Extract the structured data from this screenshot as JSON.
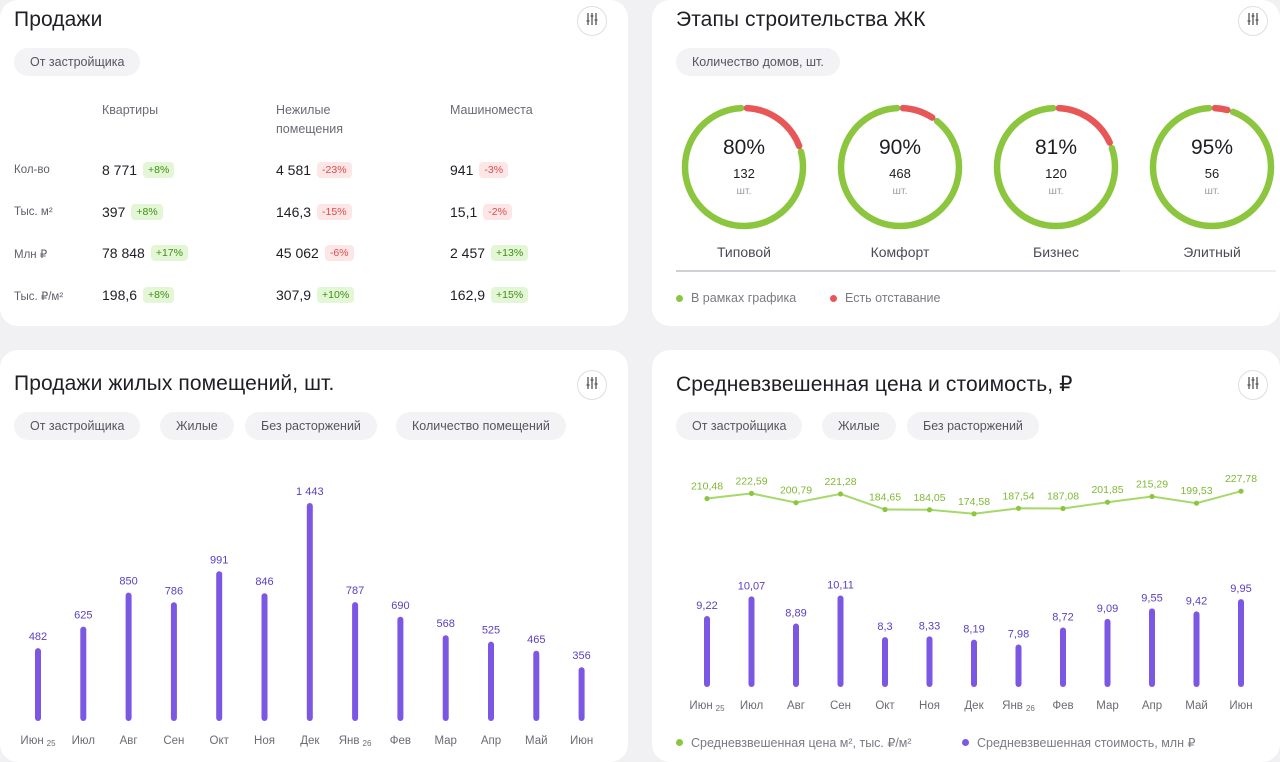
{
  "colors": {
    "accent_purple": "#7b57e4",
    "accent_green": "#8cc63f",
    "green_line": "#a6d86a",
    "red": "#e85757",
    "pos_bg": "#e3f6d6",
    "neg_bg": "#fde6e6"
  },
  "icons": {
    "settings": "sliders-icon"
  },
  "sales": {
    "title": "Продажи",
    "chip": "От застройщика",
    "columns": [
      {
        "lines": [
          "Квартиры"
        ]
      },
      {
        "lines": [
          "Нежилые",
          "помещения"
        ]
      },
      {
        "lines": [
          "Машиноместа"
        ]
      }
    ],
    "rows": [
      {
        "label": "Кол-во",
        "cells": [
          {
            "value": "8 771",
            "change": "+8%",
            "dir": "pos"
          },
          {
            "value": "4 581",
            "change": "-23%",
            "dir": "neg"
          },
          {
            "value": "941",
            "change": "-3%",
            "dir": "neg"
          }
        ]
      },
      {
        "label": "Тыс. м²",
        "cells": [
          {
            "value": "397",
            "change": "+8%",
            "dir": "pos"
          },
          {
            "value": "146,3",
            "change": "-15%",
            "dir": "neg"
          },
          {
            "value": "15,1",
            "change": "-2%",
            "dir": "neg"
          }
        ]
      },
      {
        "label": "Млн ₽",
        "cells": [
          {
            "value": "78 848",
            "change": "+17%",
            "dir": "pos"
          },
          {
            "value": "45 062",
            "change": "-6%",
            "dir": "neg"
          },
          {
            "value": "2 457",
            "change": "+13%",
            "dir": "pos"
          }
        ]
      },
      {
        "label": "Тыс. ₽/м²",
        "cells": [
          {
            "value": "198,6",
            "change": "+8%",
            "dir": "pos"
          },
          {
            "value": "307,9",
            "change": "+10%",
            "dir": "pos"
          },
          {
            "value": "162,9",
            "change": "+15%",
            "dir": "pos"
          }
        ]
      }
    ]
  },
  "stages": {
    "title": "Этапы строительства ЖК",
    "chip": "Количество домов, шт.",
    "donuts": [
      {
        "percent": "80%",
        "fraction": 0.8,
        "count": "132",
        "unit": "шт.",
        "label": "Типовой"
      },
      {
        "percent": "90%",
        "fraction": 0.9,
        "count": "468",
        "unit": "шт.",
        "label": "Комфорт"
      },
      {
        "percent": "81%",
        "fraction": 0.81,
        "count": "120",
        "unit": "шт.",
        "label": "Бизнес"
      },
      {
        "percent": "95%",
        "fraction": 0.95,
        "count": "56",
        "unit": "шт.",
        "label": "Элитный"
      }
    ],
    "scroll_fraction": 0.74,
    "legend": [
      {
        "label": "В рамках графика",
        "color": "#8cc63f"
      },
      {
        "label": "Есть отставание",
        "color": "#e85757"
      }
    ]
  },
  "resid": {
    "title": "Продажи жилых помещений, шт.",
    "chips": [
      "От застройщика",
      "Жилые",
      "Без расторжений",
      "Количество помещений"
    ],
    "chart_data": {
      "type": "bar",
      "categories": [
        "Июн 25",
        "Июл",
        "Авг",
        "Сен",
        "Окт",
        "Ноя",
        "Дек",
        "Янв 26",
        "Фев",
        "Мар",
        "Апр",
        "Май",
        "Июн"
      ],
      "series": [
        {
          "values": [
            482,
            625,
            850,
            786,
            991,
            846,
            1443,
            787,
            690,
            568,
            525,
            465,
            356
          ],
          "labels": [
            "482",
            "625",
            "850",
            "786",
            "991",
            "846",
            "1 443",
            "787",
            "690",
            "568",
            "525",
            "465",
            "356"
          ]
        }
      ],
      "xlabels": [
        {
          "main": "Июн",
          "sub": "25"
        },
        {
          "main": "Июл",
          "sub": ""
        },
        {
          "main": "Авг",
          "sub": ""
        },
        {
          "main": "Сен",
          "sub": ""
        },
        {
          "main": "Окт",
          "sub": ""
        },
        {
          "main": "Ноя",
          "sub": ""
        },
        {
          "main": "Дек",
          "sub": ""
        },
        {
          "main": "Янв",
          "sub": "26"
        },
        {
          "main": "Фев",
          "sub": ""
        },
        {
          "main": "Мар",
          "sub": ""
        },
        {
          "main": "Апр",
          "sub": ""
        },
        {
          "main": "Май",
          "sub": ""
        },
        {
          "main": "Июн",
          "sub": ""
        }
      ],
      "title": "",
      "xlabel": "",
      "ylabel": "",
      "ylim": [
        0,
        1443
      ],
      "grid": false,
      "legend": "none"
    }
  },
  "price": {
    "title": "Средневзвешенная цена и стоимость, ₽",
    "chips": [
      "От застройщика",
      "Жилые",
      "Без расторжений"
    ],
    "chart_data": {
      "type": "line+bar",
      "categories": [
        "Июн 25",
        "Июл",
        "Авг",
        "Сен",
        "Окт",
        "Ноя",
        "Дек",
        "Янв 26",
        "Фев",
        "Мар",
        "Апр",
        "Май",
        "Июн"
      ],
      "xlabels": [
        {
          "main": "Июн",
          "sub": "25"
        },
        {
          "main": "Июл",
          "sub": ""
        },
        {
          "main": "Авг",
          "sub": ""
        },
        {
          "main": "Сен",
          "sub": ""
        },
        {
          "main": "Окт",
          "sub": ""
        },
        {
          "main": "Ноя",
          "sub": ""
        },
        {
          "main": "Дек",
          "sub": ""
        },
        {
          "main": "Янв",
          "sub": "26"
        },
        {
          "main": "Фев",
          "sub": ""
        },
        {
          "main": "Мар",
          "sub": ""
        },
        {
          "main": "Апр",
          "sub": ""
        },
        {
          "main": "Май",
          "sub": ""
        },
        {
          "main": "Июн",
          "sub": ""
        }
      ],
      "series": [
        {
          "name": "Средневзвешенная цена м², тыс. ₽/м²",
          "type": "line",
          "color": "#8cc63f",
          "values": [
            210.48,
            222.59,
            200.79,
            221.28,
            184.65,
            184.05,
            174.58,
            187.54,
            187.08,
            201.85,
            215.29,
            199.53,
            227.78
          ],
          "labels": [
            "210,48",
            "222,59",
            "200,79",
            "221,28",
            "184,65",
            "184,05",
            "174,58",
            "187,54",
            "187,08",
            "201,85",
            "215,29",
            "199,53",
            "227,78"
          ]
        },
        {
          "name": "Средневзвешенная стоимость, млн ₽",
          "type": "bar",
          "color": "#7b57e4",
          "values": [
            9.22,
            10.07,
            8.89,
            10.11,
            8.3,
            8.33,
            8.19,
            7.98,
            8.72,
            9.09,
            9.55,
            9.42,
            9.95
          ],
          "labels": [
            "9,22",
            "10,07",
            "8,89",
            "10,11",
            "8,3",
            "8,33",
            "8,19",
            "7,98",
            "8,72",
            "9,09",
            "9,55",
            "9,42",
            "9,95"
          ]
        }
      ],
      "title": "",
      "xlabel": "",
      "ylabel": "",
      "legend": "bottom"
    }
  }
}
